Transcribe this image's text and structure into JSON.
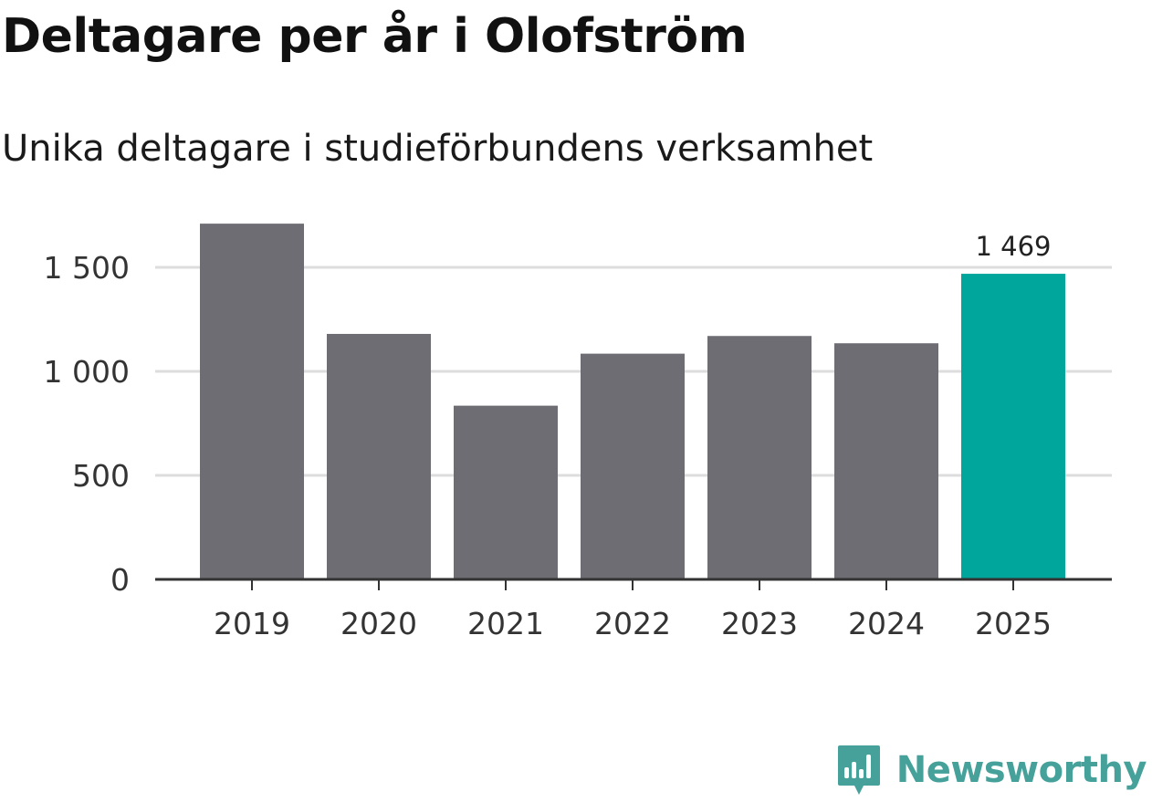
{
  "title": "Deltagare per år i Olofström",
  "subtitle": "Unika deltagare i studieförbundens verksamhet",
  "brand": {
    "name": "Newsworthy",
    "color": "#45a19a"
  },
  "colors": {
    "bar": "#6e6d73",
    "highlight": "#00a59b",
    "grid": "#dddddd",
    "axis": "#333333"
  },
  "chart_data": {
    "type": "bar",
    "title": "Deltagare per år i Olofström",
    "subtitle": "Unika deltagare i studieförbundens verksamhet",
    "xlabel": "",
    "ylabel": "",
    "categories": [
      "2019",
      "2020",
      "2021",
      "2022",
      "2023",
      "2024",
      "2025"
    ],
    "values": [
      1710,
      1180,
      835,
      1085,
      1170,
      1135,
      1469
    ],
    "highlight_index": 6,
    "data_labels": [
      null,
      null,
      null,
      null,
      null,
      null,
      "1 469"
    ],
    "ylim": [
      0,
      1750
    ],
    "yticks": [
      0,
      500,
      1000,
      1500
    ],
    "ytick_labels": [
      "0",
      "500",
      "1 000",
      "1 500"
    ],
    "grid": true,
    "legend": "none"
  }
}
